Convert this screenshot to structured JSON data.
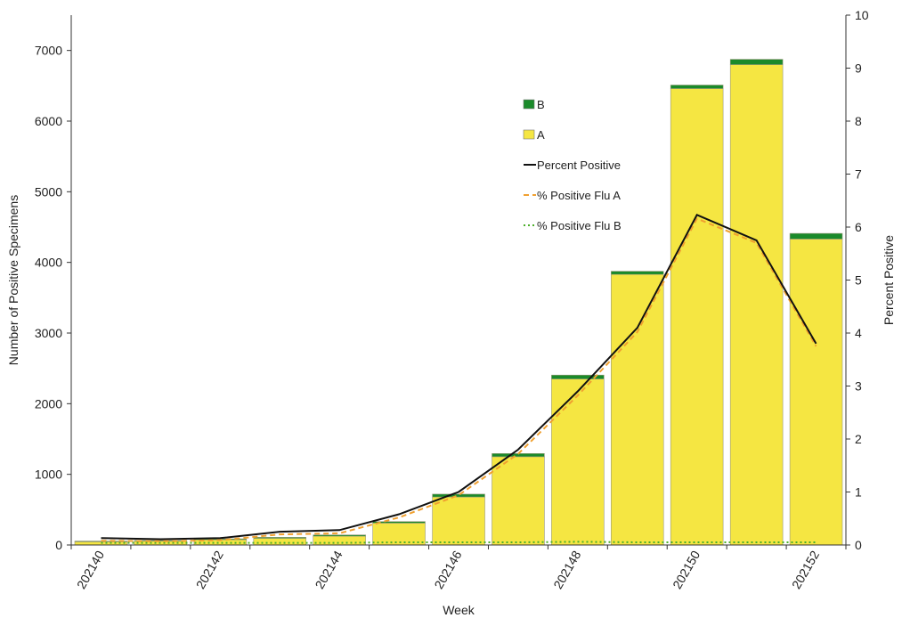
{
  "chart_data": {
    "type": "bar",
    "xlabel": "Week",
    "ylabel": "Number of Positive Specimens",
    "y2label": "Percent Positive",
    "ylim": [
      0,
      7500
    ],
    "y2lim": [
      0,
      10
    ],
    "yticks": [
      0,
      1000,
      2000,
      3000,
      4000,
      5000,
      6000,
      7000
    ],
    "y2ticks": [
      0,
      1,
      2,
      3,
      4,
      5,
      6,
      7,
      8,
      9,
      10
    ],
    "categories": [
      "202140",
      "202141",
      "202142",
      "202143",
      "202144",
      "202145",
      "202146",
      "202147",
      "202148",
      "202149",
      "202150",
      "202151",
      "202152"
    ],
    "xtick_labels": [
      "202140",
      "202142",
      "202144",
      "202146",
      "202148",
      "202150",
      "202152"
    ],
    "stacked": true,
    "series": [
      {
        "name": "A",
        "kind": "bar",
        "axis": "left",
        "color": "#f5e642",
        "values": [
          45,
          55,
          75,
          95,
          125,
          310,
          680,
          1250,
          2350,
          3830,
          6460,
          6800,
          4330
        ]
      },
      {
        "name": "B",
        "kind": "bar",
        "axis": "left",
        "color": "#1a8a2a",
        "values": [
          10,
          10,
          12,
          14,
          18,
          22,
          40,
          45,
          55,
          45,
          50,
          75,
          80
        ]
      },
      {
        "name": "Percent Positive",
        "kind": "line",
        "axis": "right",
        "color": "#111111",
        "style": "solid",
        "values": [
          0.13,
          0.11,
          0.13,
          0.25,
          0.28,
          0.58,
          1.0,
          1.8,
          2.9,
          4.1,
          6.23,
          5.75,
          3.8
        ]
      },
      {
        "name": "% Positive Flu A",
        "kind": "line",
        "axis": "right",
        "color": "#f0a030",
        "style": "dashed",
        "values": [
          0.08,
          0.07,
          0.09,
          0.2,
          0.22,
          0.52,
          0.94,
          1.72,
          2.82,
          4.02,
          6.16,
          5.7,
          3.75
        ]
      },
      {
        "name": "% Positive Flu B",
        "kind": "line",
        "axis": "right",
        "color": "#4caf2a",
        "style": "dotted",
        "values": [
          0.04,
          0.04,
          0.04,
          0.04,
          0.04,
          0.05,
          0.05,
          0.05,
          0.06,
          0.05,
          0.05,
          0.05,
          0.05
        ]
      }
    ],
    "legend": {
      "placement": "inside-top-center",
      "order": [
        "B",
        "A",
        "Percent Positive",
        "% Positive Flu A",
        "% Positive Flu B"
      ]
    },
    "grid": false
  }
}
